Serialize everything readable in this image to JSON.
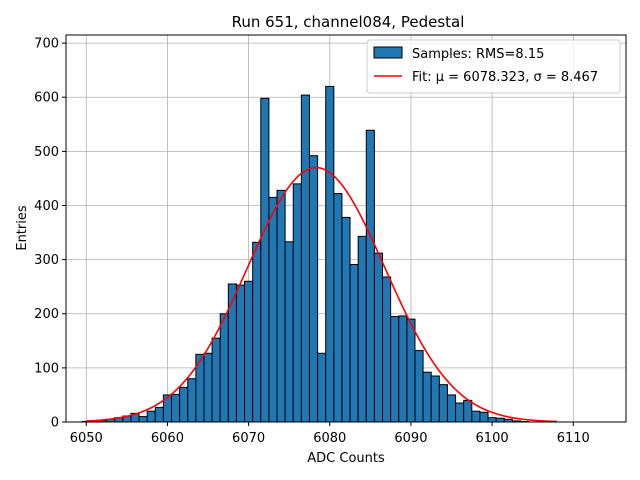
{
  "chart_data": {
    "type": "bar",
    "title": "Run 651, channel084, Pedestal",
    "xlabel": "ADC Counts",
    "ylabel": "Entries",
    "xlim": [
      6047.5,
      6116.5
    ],
    "ylim": [
      0,
      715
    ],
    "grid": true,
    "legend_position": "top-right",
    "xticks": [
      6050,
      6060,
      6070,
      6080,
      6090,
      6100,
      6110
    ],
    "yticks": [
      0,
      100,
      200,
      300,
      400,
      500,
      600,
      700
    ],
    "bin_width": 1,
    "histogram": {
      "name": "Samples: RMS=8.15",
      "color": "#1f77b4",
      "edgecolor": "#000000",
      "bin_start": 6050,
      "counts": [
        1,
        2,
        3,
        5,
        8,
        11,
        16,
        10,
        20,
        27,
        50,
        51,
        64,
        80,
        125,
        127,
        155,
        200,
        255,
        253,
        260,
        332,
        598,
        415,
        428,
        333,
        440,
        604,
        492,
        127,
        620,
        422,
        378,
        291,
        343,
        539,
        312,
        268,
        195,
        196,
        190,
        132,
        92,
        85,
        69,
        50,
        35,
        40,
        20,
        18,
        8,
        7,
        5,
        2,
        1,
        0,
        0,
        0
      ]
    },
    "fit": {
      "name": "Fit: μ = 6078.323, σ = 8.467",
      "color": "#ff0000",
      "mu": 6078.323,
      "sigma": 8.467,
      "amplitude": 470,
      "x_range": [
        6050,
        6108
      ]
    }
  }
}
